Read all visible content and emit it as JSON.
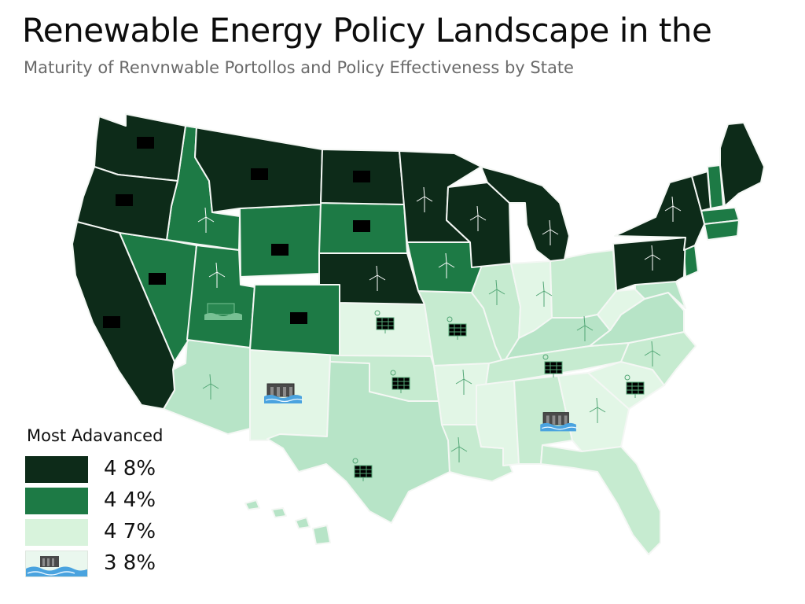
{
  "title": "Renewable Energy Policy Landscape in the",
  "subtitle": "Maturity of Renvnwable Portollos and Policy Effectiveness by State",
  "colors": {
    "tier1": "#0d2b19",
    "tier2": "#1d7a45",
    "tier3": "#d8f3dc",
    "tier3_alt": "#b7e4c7",
    "icon_dark_bg": "#ffffff",
    "icon_light_bg": "#52a675",
    "water": "#4aa3df"
  },
  "legend": {
    "title": "Most Adavanced",
    "items": [
      {
        "label": "4 8%",
        "color": "#0d2b19",
        "swatch": "fill"
      },
      {
        "label": "4 4%",
        "color": "#1d7a45",
        "swatch": "fill"
      },
      {
        "label": "4 7%",
        "color": "#d8f3dc",
        "swatch": "fill"
      },
      {
        "label": "3 8%",
        "icon": "hydro-dam-icon",
        "swatch": "icon"
      }
    ]
  },
  "icon_legend": [
    "solar-panel-icon",
    "wind-turbine-icon",
    "hydro-dam-icon"
  ]
}
